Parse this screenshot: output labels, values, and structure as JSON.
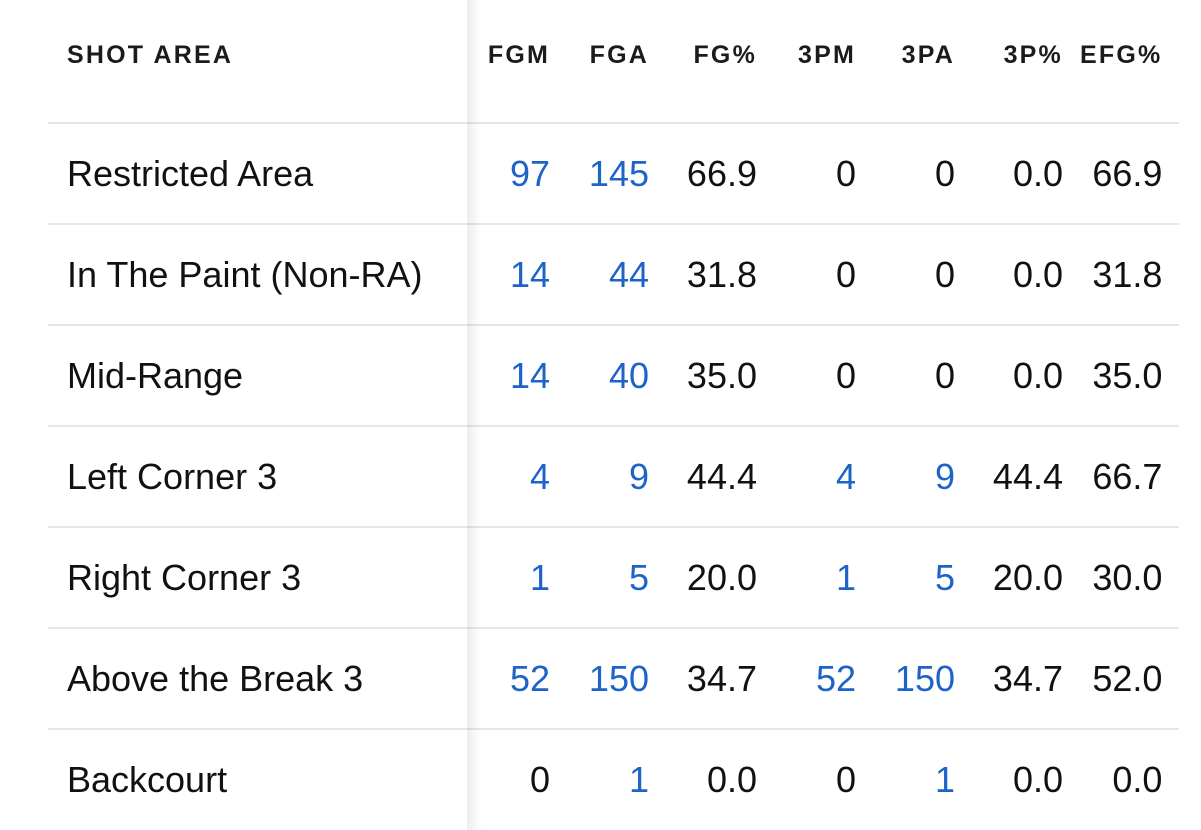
{
  "colors": {
    "link": "#1d63c8",
    "text": "#111111",
    "divider": "#e6e6e6"
  },
  "table": {
    "headers": [
      "SHOT AREA",
      "FGM",
      "FGA",
      "FG%",
      "3PM",
      "3PA",
      "3P%",
      "EFG%"
    ],
    "rows": [
      {
        "area": "Restricted Area",
        "fgm": "97",
        "fga": "145",
        "fg_pct": "66.9",
        "tpm": "0",
        "tpa": "0",
        "tp_pct": "0.0",
        "efg_pct": "66.9"
      },
      {
        "area": "In The Paint (Non-RA)",
        "fgm": "14",
        "fga": "44",
        "fg_pct": "31.8",
        "tpm": "0",
        "tpa": "0",
        "tp_pct": "0.0",
        "efg_pct": "31.8"
      },
      {
        "area": "Mid-Range",
        "fgm": "14",
        "fga": "40",
        "fg_pct": "35.0",
        "tpm": "0",
        "tpa": "0",
        "tp_pct": "0.0",
        "efg_pct": "35.0"
      },
      {
        "area": "Left Corner 3",
        "fgm": "4",
        "fga": "9",
        "fg_pct": "44.4",
        "tpm": "4",
        "tpa": "9",
        "tp_pct": "44.4",
        "efg_pct": "66.7"
      },
      {
        "area": "Right Corner 3",
        "fgm": "1",
        "fga": "5",
        "fg_pct": "20.0",
        "tpm": "1",
        "tpa": "5",
        "tp_pct": "20.0",
        "efg_pct": "30.0"
      },
      {
        "area": "Above the Break 3",
        "fgm": "52",
        "fga": "150",
        "fg_pct": "34.7",
        "tpm": "52",
        "tpa": "150",
        "tp_pct": "34.7",
        "efg_pct": "52.0"
      },
      {
        "area": "Backcourt",
        "fgm": "0",
        "fga": "1",
        "fg_pct": "0.0",
        "tpm": "0",
        "tpa": "1",
        "tp_pct": "0.0",
        "efg_pct": "0.0"
      }
    ]
  }
}
